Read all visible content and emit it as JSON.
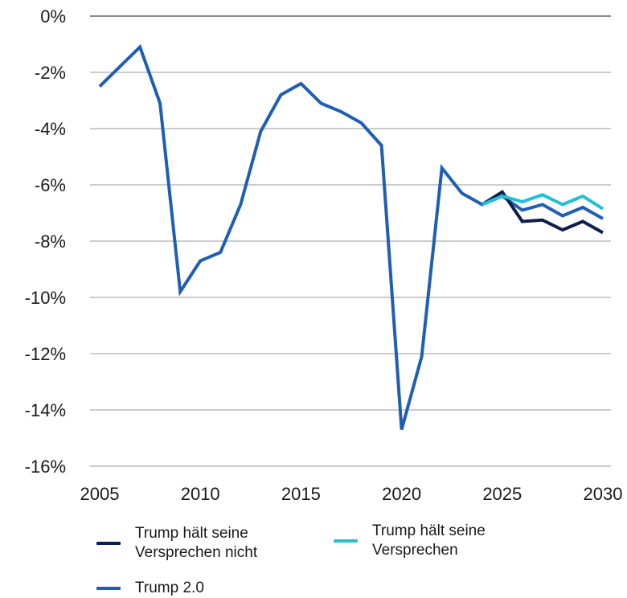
{
  "chart_data": {
    "type": "line",
    "x": [
      2005,
      2006,
      2007,
      2008,
      2009,
      2010,
      2011,
      2012,
      2013,
      2014,
      2015,
      2016,
      2017,
      2018,
      2019,
      2020,
      2021,
      2022,
      2023,
      2024,
      2025,
      2026,
      2027,
      2028,
      2029,
      2030
    ],
    "series": [
      {
        "name": "Trump 2.0",
        "color": "#1f5fb3",
        "x": [
          2005,
          2006,
          2007,
          2008,
          2009,
          2010,
          2011,
          2012,
          2013,
          2014,
          2015,
          2016,
          2017,
          2018,
          2019,
          2020,
          2021,
          2022,
          2023,
          2024,
          2025,
          2026,
          2027,
          2028,
          2029,
          2030
        ],
        "values": [
          -2.5,
          -1.8,
          -1.1,
          -3.1,
          -9.8,
          -8.7,
          -8.4,
          -6.7,
          -4.1,
          -2.8,
          -2.4,
          -3.1,
          -3.4,
          -3.8,
          -4.6,
          -14.7,
          -12.1,
          -5.4,
          -6.3,
          -6.7,
          -6.4,
          -6.9,
          -6.7,
          -7.1,
          -6.8,
          -7.2
        ]
      },
      {
        "name": "Trump hält seine Versprechen nicht",
        "color": "#0d1f4d",
        "x": [
          2024,
          2025,
          2026,
          2027,
          2028,
          2029,
          2030
        ],
        "values": [
          -6.7,
          -6.25,
          -7.3,
          -7.25,
          -7.6,
          -7.3,
          -7.7
        ]
      },
      {
        "name": "Trump hält seine Versprechen",
        "color": "#22c0d6",
        "x": [
          2024,
          2025,
          2026,
          2027,
          2028,
          2029,
          2030
        ],
        "values": [
          -6.7,
          -6.4,
          -6.6,
          -6.35,
          -6.7,
          -6.4,
          -6.85
        ]
      }
    ],
    "xlim": [
      2005,
      2030
    ],
    "ylim": [
      -16,
      0
    ],
    "xticks": [
      2005,
      2010,
      2015,
      2020,
      2025,
      2030
    ],
    "yticks": [
      0,
      -2,
      -4,
      -6,
      -8,
      -10,
      -12,
      -14,
      -16
    ],
    "ytick_labels": [
      "0%",
      "-2%",
      "-4%",
      "-6%",
      "-8%",
      "-10%",
      "-12%",
      "-14%",
      "-16%"
    ],
    "grid": true,
    "legend_position": "bottom"
  },
  "legend": {
    "item1": "Trump hält seine Versprechen nicht",
    "item1_line1": "Trump hält seine",
    "item1_line2": "Versprechen nicht",
    "item2": "Trump hält seine Versprechen",
    "item2_line1": "Trump hält seine",
    "item2_line2": "Versprechen",
    "item3": "Trump 2.0"
  }
}
